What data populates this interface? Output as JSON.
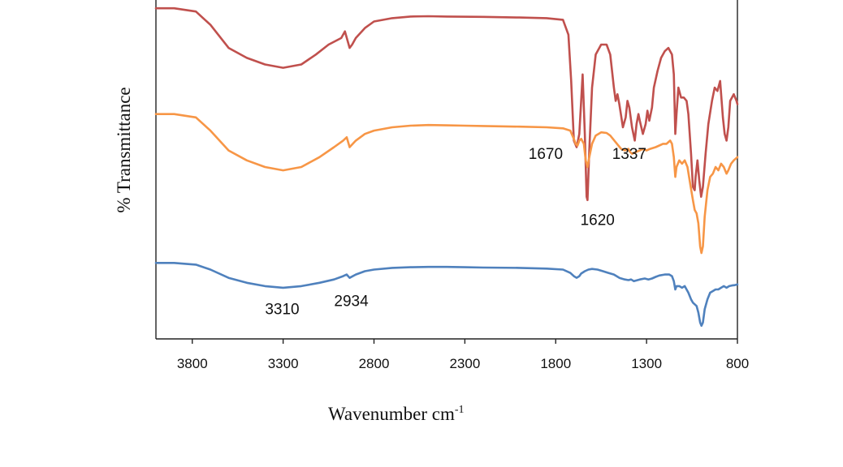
{
  "chart_data": {
    "type": "line",
    "title": "",
    "xlabel": "Wavenumber  cm",
    "xlabel_superscript": "-1",
    "ylabel": "% Transmittance",
    "xlim": [
      4000,
      800
    ],
    "x_reversed": true,
    "xticks": [
      3800,
      3300,
      2800,
      2300,
      1800,
      1300,
      800
    ],
    "yticks_shown": false,
    "grid": false,
    "series": [
      {
        "color": "#c0504d",
        "points": [
          [
            4000,
            0.98
          ],
          [
            3900,
            0.98
          ],
          [
            3780,
            0.97
          ],
          [
            3700,
            0.93
          ],
          [
            3600,
            0.86
          ],
          [
            3500,
            0.83
          ],
          [
            3400,
            0.81
          ],
          [
            3300,
            0.8
          ],
          [
            3200,
            0.81
          ],
          [
            3120,
            0.84
          ],
          [
            3050,
            0.87
          ],
          [
            2980,
            0.89
          ],
          [
            2960,
            0.91
          ],
          [
            2934,
            0.86
          ],
          [
            2920,
            0.87
          ],
          [
            2900,
            0.89
          ],
          [
            2850,
            0.92
          ],
          [
            2800,
            0.94
          ],
          [
            2700,
            0.95
          ],
          [
            2600,
            0.955
          ],
          [
            2500,
            0.956
          ],
          [
            2400,
            0.955
          ],
          [
            2200,
            0.954
          ],
          [
            2000,
            0.952
          ],
          [
            1850,
            0.95
          ],
          [
            1760,
            0.945
          ],
          [
            1730,
            0.9
          ],
          [
            1715,
            0.76
          ],
          [
            1700,
            0.58
          ],
          [
            1685,
            0.56
          ],
          [
            1670,
            0.6
          ],
          [
            1660,
            0.7
          ],
          [
            1652,
            0.78
          ],
          [
            1640,
            0.6
          ],
          [
            1630,
            0.41
          ],
          [
            1625,
            0.4
          ],
          [
            1615,
            0.55
          ],
          [
            1600,
            0.74
          ],
          [
            1580,
            0.84
          ],
          [
            1550,
            0.87
          ],
          [
            1520,
            0.87
          ],
          [
            1500,
            0.84
          ],
          [
            1480,
            0.74
          ],
          [
            1470,
            0.7
          ],
          [
            1460,
            0.72
          ],
          [
            1450,
            0.69
          ],
          [
            1430,
            0.62
          ],
          [
            1415,
            0.65
          ],
          [
            1405,
            0.7
          ],
          [
            1395,
            0.68
          ],
          [
            1380,
            0.62
          ],
          [
            1365,
            0.58
          ],
          [
            1355,
            0.63
          ],
          [
            1345,
            0.66
          ],
          [
            1337,
            0.64
          ],
          [
            1320,
            0.6
          ],
          [
            1305,
            0.63
          ],
          [
            1295,
            0.67
          ],
          [
            1285,
            0.64
          ],
          [
            1270,
            0.68
          ],
          [
            1260,
            0.74
          ],
          [
            1240,
            0.79
          ],
          [
            1220,
            0.83
          ],
          [
            1200,
            0.85
          ],
          [
            1180,
            0.86
          ],
          [
            1160,
            0.84
          ],
          [
            1150,
            0.78
          ],
          [
            1142,
            0.6
          ],
          [
            1135,
            0.66
          ],
          [
            1125,
            0.74
          ],
          [
            1110,
            0.71
          ],
          [
            1095,
            0.71
          ],
          [
            1080,
            0.7
          ],
          [
            1070,
            0.66
          ],
          [
            1055,
            0.54
          ],
          [
            1045,
            0.44
          ],
          [
            1035,
            0.43
          ],
          [
            1030,
            0.47
          ],
          [
            1020,
            0.52
          ],
          [
            1010,
            0.46
          ],
          [
            1000,
            0.41
          ],
          [
            990,
            0.44
          ],
          [
            975,
            0.54
          ],
          [
            960,
            0.63
          ],
          [
            940,
            0.7
          ],
          [
            925,
            0.74
          ],
          [
            910,
            0.73
          ],
          [
            895,
            0.76
          ],
          [
            880,
            0.65
          ],
          [
            870,
            0.6
          ],
          [
            860,
            0.58
          ],
          [
            850,
            0.62
          ],
          [
            840,
            0.7
          ],
          [
            820,
            0.72
          ],
          [
            805,
            0.7
          ],
          [
            800,
            0.69
          ]
        ]
      },
      {
        "color": "#f79646",
        "points": [
          [
            4000,
            0.66
          ],
          [
            3900,
            0.66
          ],
          [
            3780,
            0.65
          ],
          [
            3700,
            0.61
          ],
          [
            3600,
            0.55
          ],
          [
            3500,
            0.52
          ],
          [
            3400,
            0.5
          ],
          [
            3300,
            0.49
          ],
          [
            3200,
            0.5
          ],
          [
            3100,
            0.53
          ],
          [
            3020,
            0.56
          ],
          [
            2970,
            0.58
          ],
          [
            2950,
            0.59
          ],
          [
            2934,
            0.56
          ],
          [
            2900,
            0.58
          ],
          [
            2850,
            0.6
          ],
          [
            2800,
            0.61
          ],
          [
            2700,
            0.62
          ],
          [
            2600,
            0.625
          ],
          [
            2500,
            0.627
          ],
          [
            2400,
            0.626
          ],
          [
            2300,
            0.625
          ],
          [
            2200,
            0.624
          ],
          [
            2000,
            0.622
          ],
          [
            1850,
            0.62
          ],
          [
            1760,
            0.617
          ],
          [
            1720,
            0.61
          ],
          [
            1700,
            0.585
          ],
          [
            1690,
            0.57
          ],
          [
            1680,
            0.565
          ],
          [
            1670,
            0.58
          ],
          [
            1660,
            0.585
          ],
          [
            1645,
            0.57
          ],
          [
            1635,
            0.52
          ],
          [
            1625,
            0.5
          ],
          [
            1615,
            0.53
          ],
          [
            1600,
            0.57
          ],
          [
            1580,
            0.595
          ],
          [
            1550,
            0.605
          ],
          [
            1520,
            0.603
          ],
          [
            1500,
            0.595
          ],
          [
            1470,
            0.575
          ],
          [
            1440,
            0.555
          ],
          [
            1420,
            0.55
          ],
          [
            1400,
            0.555
          ],
          [
            1390,
            0.545
          ],
          [
            1380,
            0.54
          ],
          [
            1360,
            0.545
          ],
          [
            1337,
            0.55
          ],
          [
            1320,
            0.555
          ],
          [
            1300,
            0.55
          ],
          [
            1280,
            0.555
          ],
          [
            1250,
            0.56
          ],
          [
            1230,
            0.565
          ],
          [
            1210,
            0.57
          ],
          [
            1190,
            0.57
          ],
          [
            1170,
            0.58
          ],
          [
            1160,
            0.57
          ],
          [
            1150,
            0.53
          ],
          [
            1142,
            0.47
          ],
          [
            1135,
            0.5
          ],
          [
            1120,
            0.52
          ],
          [
            1105,
            0.51
          ],
          [
            1090,
            0.52
          ],
          [
            1075,
            0.5
          ],
          [
            1060,
            0.45
          ],
          [
            1045,
            0.4
          ],
          [
            1035,
            0.37
          ],
          [
            1025,
            0.36
          ],
          [
            1015,
            0.33
          ],
          [
            1005,
            0.26
          ],
          [
            998,
            0.24
          ],
          [
            990,
            0.26
          ],
          [
            980,
            0.35
          ],
          [
            965,
            0.43
          ],
          [
            950,
            0.47
          ],
          [
            935,
            0.48
          ],
          [
            920,
            0.5
          ],
          [
            905,
            0.49
          ],
          [
            890,
            0.51
          ],
          [
            875,
            0.5
          ],
          [
            860,
            0.48
          ],
          [
            850,
            0.49
          ],
          [
            835,
            0.51
          ],
          [
            820,
            0.52
          ],
          [
            800,
            0.53
          ]
        ]
      },
      {
        "color": "#4f81bd",
        "points": [
          [
            4000,
            0.21
          ],
          [
            3900,
            0.21
          ],
          [
            3780,
            0.205
          ],
          [
            3700,
            0.19
          ],
          [
            3600,
            0.165
          ],
          [
            3500,
            0.15
          ],
          [
            3400,
            0.14
          ],
          [
            3300,
            0.135
          ],
          [
            3200,
            0.14
          ],
          [
            3100,
            0.15
          ],
          [
            3020,
            0.16
          ],
          [
            2970,
            0.17
          ],
          [
            2950,
            0.175
          ],
          [
            2934,
            0.165
          ],
          [
            2900,
            0.175
          ],
          [
            2850,
            0.185
          ],
          [
            2800,
            0.19
          ],
          [
            2700,
            0.195
          ],
          [
            2600,
            0.197
          ],
          [
            2500,
            0.198
          ],
          [
            2400,
            0.198
          ],
          [
            2300,
            0.197
          ],
          [
            2200,
            0.196
          ],
          [
            2000,
            0.195
          ],
          [
            1850,
            0.193
          ],
          [
            1760,
            0.19
          ],
          [
            1720,
            0.18
          ],
          [
            1700,
            0.17
          ],
          [
            1685,
            0.165
          ],
          [
            1670,
            0.17
          ],
          [
            1660,
            0.178
          ],
          [
            1640,
            0.185
          ],
          [
            1620,
            0.19
          ],
          [
            1600,
            0.192
          ],
          [
            1570,
            0.19
          ],
          [
            1540,
            0.185
          ],
          [
            1510,
            0.18
          ],
          [
            1480,
            0.175
          ],
          [
            1450,
            0.165
          ],
          [
            1420,
            0.16
          ],
          [
            1400,
            0.158
          ],
          [
            1385,
            0.16
          ],
          [
            1370,
            0.155
          ],
          [
            1337,
            0.16
          ],
          [
            1310,
            0.163
          ],
          [
            1290,
            0.16
          ],
          [
            1270,
            0.163
          ],
          [
            1250,
            0.168
          ],
          [
            1230,
            0.172
          ],
          [
            1200,
            0.175
          ],
          [
            1175,
            0.175
          ],
          [
            1160,
            0.17
          ],
          [
            1150,
            0.155
          ],
          [
            1142,
            0.13
          ],
          [
            1135,
            0.14
          ],
          [
            1120,
            0.14
          ],
          [
            1105,
            0.135
          ],
          [
            1090,
            0.14
          ],
          [
            1070,
            0.12
          ],
          [
            1055,
            0.1
          ],
          [
            1045,
            0.09
          ],
          [
            1035,
            0.085
          ],
          [
            1025,
            0.08
          ],
          [
            1015,
            0.06
          ],
          [
            1005,
            0.03
          ],
          [
            998,
            0.02
          ],
          [
            990,
            0.03
          ],
          [
            980,
            0.07
          ],
          [
            965,
            0.1
          ],
          [
            950,
            0.12
          ],
          [
            935,
            0.125
          ],
          [
            920,
            0.13
          ],
          [
            905,
            0.13
          ],
          [
            890,
            0.135
          ],
          [
            875,
            0.14
          ],
          [
            860,
            0.135
          ],
          [
            845,
            0.14
          ],
          [
            830,
            0.142
          ],
          [
            815,
            0.143
          ],
          [
            800,
            0.145
          ]
        ]
      }
    ],
    "annotations": [
      {
        "text": "1670",
        "x": 1855,
        "y": 0.525
      },
      {
        "text": "1337",
        "x": 1395,
        "y": 0.525
      },
      {
        "text": "1620",
        "x": 1570,
        "y": 0.325
      },
      {
        "text": "3310",
        "x": 3305,
        "y": 0.055
      },
      {
        "text": "2934",
        "x": 2925,
        "y": 0.08
      }
    ]
  }
}
